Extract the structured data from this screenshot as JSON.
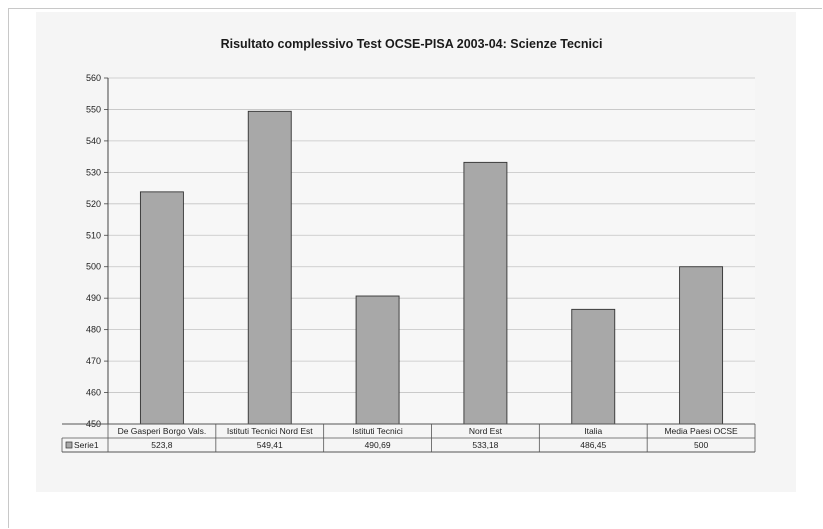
{
  "chart_data": {
    "type": "bar",
    "title": "Risultato complessivo Test OCSE-PISA 2003-04: Scienze Tecnici",
    "xlabel": "",
    "ylabel": "",
    "ylim": [
      450,
      560
    ],
    "yticks": [
      "560",
      "550",
      "540",
      "530",
      "520",
      "510",
      "500",
      "490",
      "480",
      "470",
      "460",
      "450"
    ],
    "grid": true,
    "categories": [
      "De Gasperi Borgo Vals.",
      "Istituti Tecnici Nord Est",
      "Istituti Tecnici",
      "Nord Est",
      "Italia",
      "Media Paesi OCSE"
    ],
    "series": [
      {
        "name": "Serie1",
        "values": [
          523.8,
          549.41,
          490.69,
          533.18,
          486.45,
          500
        ],
        "labels": [
          "523,8",
          "549,41",
          "490,69",
          "533,18",
          "486,45",
          "500"
        ],
        "color": "#a8a8a8"
      }
    ],
    "data_table": true
  }
}
